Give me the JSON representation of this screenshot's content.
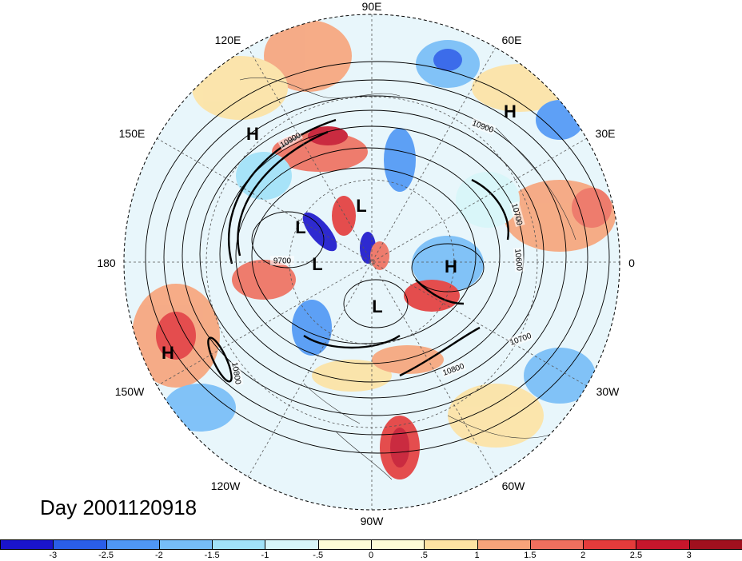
{
  "title": "Day 2001120918",
  "longitude_labels": [
    {
      "key": "lon-90e",
      "text": "90E"
    },
    {
      "key": "lon-60e",
      "text": "60E"
    },
    {
      "key": "lon-120e",
      "text": "120E"
    },
    {
      "key": "lon-150e",
      "text": "150E"
    },
    {
      "key": "lon-30e",
      "text": "30E"
    },
    {
      "key": "lon-180",
      "text": "180"
    },
    {
      "key": "lon-0",
      "text": "0"
    },
    {
      "key": "lon-150w",
      "text": "150W"
    },
    {
      "key": "lon-30w",
      "text": "30W"
    },
    {
      "key": "lon-120w",
      "text": "120W"
    },
    {
      "key": "lon-60w",
      "text": "60W"
    },
    {
      "key": "lon-90w",
      "text": "90W"
    }
  ],
  "pressure_systems": [
    {
      "text": "H"
    },
    {
      "text": "H"
    },
    {
      "text": "L"
    },
    {
      "text": "L"
    },
    {
      "text": "L"
    },
    {
      "text": "H"
    },
    {
      "text": "L"
    },
    {
      "text": "H"
    }
  ],
  "contour_labels": [
    "10900",
    "10900",
    "10700",
    "10600",
    "9700",
    "10800",
    "10700",
    "10800"
  ],
  "colorbar": {
    "colors": [
      "#1a14cc",
      "#2a5ee8",
      "#4f97f5",
      "#76bdf7",
      "#a1e2f8",
      "#d8f6f9",
      "#fdfbd6",
      "#fde3a3",
      "#f7a47a",
      "#ef6f5e",
      "#e43b3b",
      "#c7162c",
      "#a0101e"
    ],
    "ticks": [
      "-3",
      "-2.5",
      "-2",
      "-1.5",
      "-1",
      "-.5",
      "0",
      ".5",
      "1",
      "1.5",
      "2",
      "2.5",
      "3"
    ]
  }
}
